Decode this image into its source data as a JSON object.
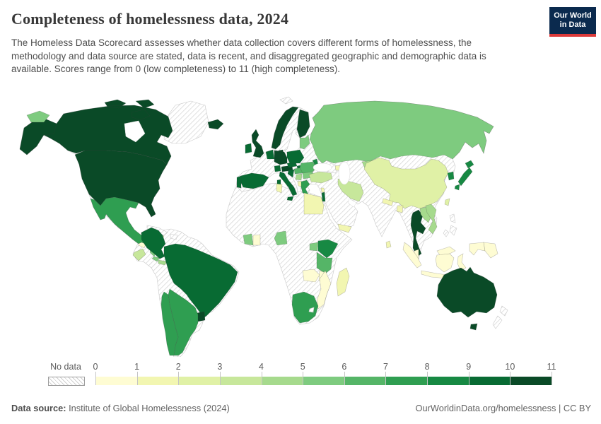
{
  "header": {
    "title": "Completeness of homelessness data, 2024",
    "subtitle": "The Homeless Data Scorecard assesses whether data collection covers different forms of homelessness, the methodology and data source are stated, data is recent, and disaggregated geographic and demographic data is available. Scores range from 0 (low completeness) to 11 (high completeness).",
    "logo": {
      "line1": "Our World",
      "line2": "in Data"
    }
  },
  "legend": {
    "no_data_label": "No data",
    "ticks": [
      "0",
      "1",
      "2",
      "3",
      "4",
      "5",
      "6",
      "7",
      "8",
      "9",
      "10",
      "11"
    ]
  },
  "colors": {
    "scale": [
      "#fefcd3",
      "#f2f6b1",
      "#e0f1a6",
      "#c7e79b",
      "#a6da8d",
      "#7ecb7f",
      "#55b567",
      "#2f9e51",
      "#178943",
      "#086b33",
      "#0a4a27"
    ],
    "hatch_line": "#d2d2d2",
    "logo_bg": "#0b2a4e",
    "logo_red": "#dc3a3a"
  },
  "footer": {
    "source_label": "Data source:",
    "source_value": " Institute of Global Homelessness (2024)",
    "right": "OurWorldinData.org/homelessness | CC BY"
  },
  "chart_data": {
    "type": "choropleth_map",
    "title": "Completeness of homelessness data, 2024",
    "metric": "Homeless Data Scorecard score",
    "range": [
      0,
      11
    ],
    "legend_position": "bottom",
    "countries": [
      {
        "name": "United States",
        "score": 10
      },
      {
        "name": "Canada",
        "score": 10
      },
      {
        "name": "Mexico",
        "score": 7
      },
      {
        "name": "Guatemala",
        "score": 0
      },
      {
        "name": "Nicaragua",
        "score": 5
      },
      {
        "name": "Costa Rica",
        "score": 5
      },
      {
        "name": "Panama",
        "score": 4
      },
      {
        "name": "Jamaica",
        "score": 1
      },
      {
        "name": "Trinidad and Tobago",
        "score": 6
      },
      {
        "name": "Colombia",
        "score": 9
      },
      {
        "name": "Ecuador",
        "score": 3
      },
      {
        "name": "Brazil",
        "score": 9
      },
      {
        "name": "Uruguay",
        "score": 10
      },
      {
        "name": "Argentina",
        "score": 7
      },
      {
        "name": "Chile",
        "score": 7
      },
      {
        "name": "Iceland",
        "score": 10
      },
      {
        "name": "Ireland",
        "score": 9
      },
      {
        "name": "United Kingdom",
        "score": 10
      },
      {
        "name": "Portugal",
        "score": 9
      },
      {
        "name": "Spain",
        "score": 9
      },
      {
        "name": "Norway",
        "score": 10
      },
      {
        "name": "Finland",
        "score": 10
      },
      {
        "name": "Denmark",
        "score": 10
      },
      {
        "name": "Netherlands-Belgium",
        "score": 9
      },
      {
        "name": "Germany",
        "score": 10
      },
      {
        "name": "Switzerland",
        "score": 9
      },
      {
        "name": "Austria",
        "score": 10
      },
      {
        "name": "Czechia",
        "score": 9
      },
      {
        "name": "Slovakia",
        "score": 9
      },
      {
        "name": "Poland",
        "score": 9
      },
      {
        "name": "Baltic states",
        "score": 5
      },
      {
        "name": "Hungary",
        "score": 6
      },
      {
        "name": "Croatia",
        "score": 9
      },
      {
        "name": "Serbia",
        "score": 4
      },
      {
        "name": "Albania",
        "score": 1
      },
      {
        "name": "Greece",
        "score": 7
      },
      {
        "name": "Bulgaria",
        "score": 5
      },
      {
        "name": "Romania",
        "score": 6
      },
      {
        "name": "Moldova",
        "score": 8
      },
      {
        "name": "Italy",
        "score": 9
      },
      {
        "name": "Russia",
        "score": 5
      },
      {
        "name": "Kyrgyzstan",
        "score": 4
      },
      {
        "name": "Turkey",
        "score": 3
      },
      {
        "name": "Azerbaijan",
        "score": 1
      },
      {
        "name": "Lebanon",
        "score": 1
      },
      {
        "name": "Israel",
        "score": 9
      },
      {
        "name": "Iran",
        "score": 3
      },
      {
        "name": "Yemen",
        "score": 1
      },
      {
        "name": "Egypt",
        "score": 1
      },
      {
        "name": "Tunisia",
        "score": 1
      },
      {
        "name": "Cote d'Ivoire",
        "score": 5
      },
      {
        "name": "Ghana",
        "score": 0
      },
      {
        "name": "Cameroon",
        "score": 5
      },
      {
        "name": "Uganda",
        "score": 5
      },
      {
        "name": "Kenya",
        "score": 8
      },
      {
        "name": "Tanzania",
        "score": 6
      },
      {
        "name": "Zambia",
        "score": 0
      },
      {
        "name": "Malawi",
        "score": 0
      },
      {
        "name": "Mozambique",
        "score": 0
      },
      {
        "name": "Madagascar",
        "score": 1
      },
      {
        "name": "South Africa",
        "score": 7
      },
      {
        "name": "China",
        "score": 2
      },
      {
        "name": "Taiwan",
        "score": 2
      },
      {
        "name": "South Korea",
        "score": 8
      },
      {
        "name": "Japan",
        "score": 8
      },
      {
        "name": "Nepal",
        "score": 1
      },
      {
        "name": "Bangladesh",
        "score": 1
      },
      {
        "name": "Sri Lanka",
        "score": 1
      },
      {
        "name": "Thailand",
        "score": 10
      },
      {
        "name": "Laos",
        "score": 4
      },
      {
        "name": "Vietnam",
        "score": 4
      },
      {
        "name": "Malaysia",
        "score": 0
      },
      {
        "name": "Indonesia",
        "score": 0
      },
      {
        "name": "Papua New Guinea",
        "score": 0
      },
      {
        "name": "Australia",
        "score": 10
      }
    ],
    "no_data": [
      "Greenland",
      "France",
      "Sweden",
      "Ukraine",
      "Belarus",
      "Kazakhstan",
      "Mongolia",
      "India",
      "Pakistan",
      "Afghanistan",
      "Saudi Arabia",
      "Iraq",
      "Syria",
      "Myanmar",
      "Cambodia",
      "North Korea",
      "Philippines",
      "New Zealand",
      "Cuba",
      "Haiti",
      "Dominican Republic",
      "Honduras",
      "Venezuela",
      "Guyana",
      "Suriname",
      "Peru",
      "Bolivia",
      "Paraguay",
      "Lesotho",
      "most of Africa"
    ]
  }
}
